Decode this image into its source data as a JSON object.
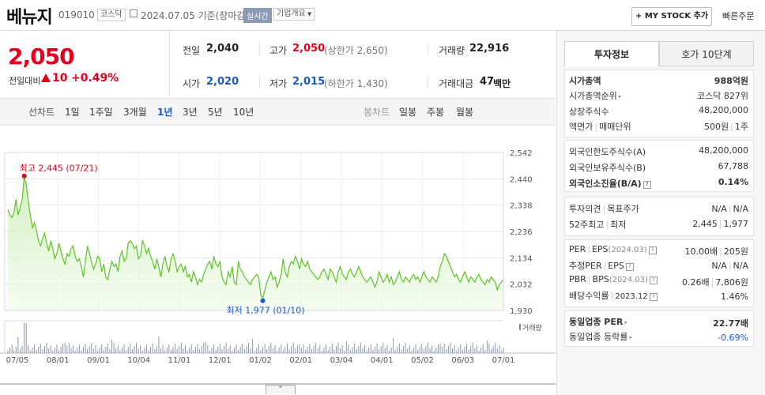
{
  "stock": {
    "name": "베뉴지",
    "code": "019010",
    "market": "코스닥",
    "date_text": "2024.07.05  기준(장마감)",
    "realtime_label": "실시간",
    "company_info_label": "기업개요",
    "mystock_label": "+ MY STOCK 추가",
    "quick_order_label": "빠른주문"
  },
  "price": {
    "current": "2,050",
    "change_label": "전일대비",
    "change_value": "10",
    "change_percent": "+0.49%"
  },
  "summary": {
    "prev_label": "전일",
    "prev_value": "2,040",
    "high_label": "고가",
    "high_value": "2,050",
    "upper_limit": "(상한가 2,650)",
    "volume_label": "거래량",
    "volume_value": "22,916",
    "open_label": "시가",
    "open_value": "2,020",
    "low_label": "저가",
    "low_value": "2,015",
    "lower_limit": "(하한가 1,430)",
    "amount_label": "거래대금",
    "amount_value": "47",
    "amount_unit": "백만"
  },
  "periods": {
    "line_label": "선차트",
    "items": [
      "1일",
      "1주일",
      "3개월",
      "1년",
      "3년",
      "5년",
      "10년"
    ],
    "active": "1년",
    "candle_label": "봉차트",
    "candle_items": [
      "일봉",
      "주봉",
      "월봉"
    ]
  },
  "chart_data": {
    "type": "area",
    "y_ticks": [
      2542,
      2440,
      2338,
      2236,
      2134,
      2032,
      1930
    ],
    "x_ticks": [
      "07/05",
      "08/01",
      "09/01",
      "10/04",
      "11/01",
      "12/01",
      "01/02",
      "02/01",
      "03/04",
      "04/01",
      "05/02",
      "06/03",
      "07/01"
    ],
    "ylim": [
      1930,
      2542
    ],
    "high_label": "최고 2,445 (07/21)",
    "low_label": "최저 1,977 (01/10)",
    "volume_label": "거래량",
    "prices": [
      2320,
      2300,
      2290,
      2310,
      2360,
      2300,
      2330,
      2360,
      2445,
      2420,
      2350,
      2300,
      2250,
      2270,
      2240,
      2200,
      2180,
      2210,
      2230,
      2190,
      2160,
      2200,
      2170,
      2130,
      2150,
      2190,
      2160,
      2130,
      2110,
      2150,
      2140,
      2170,
      2180,
      2140,
      2120,
      2130,
      2100,
      2060,
      2120,
      2180,
      2150,
      2120,
      2090,
      2110,
      2140,
      2130,
      2080,
      2110,
      2060,
      2050,
      2090,
      2120,
      2100,
      2110,
      2080,
      2140,
      2160,
      2120,
      2130,
      2190,
      2200,
      2190,
      2170,
      2180,
      2130,
      2140,
      2200,
      2180,
      2150,
      2170,
      2140,
      2120,
      2090,
      2130,
      2100,
      2060,
      2110,
      2140,
      2100,
      2080,
      2130,
      2150,
      2120,
      2080,
      2100,
      2110,
      2080,
      2100,
      2060,
      2070,
      2040,
      2080,
      2060,
      2030,
      2050,
      2040,
      2070,
      2090,
      2110,
      2120,
      2090,
      2140,
      2110,
      2100,
      2120,
      2060,
      2040,
      2030,
      2080,
      2060,
      2100,
      2040,
      2030,
      2120,
      2090,
      2080,
      2060,
      2050,
      2040,
      2030,
      2050,
      2060,
      2070,
      2060,
      1990,
      1977,
      2010,
      2040,
      2060,
      2080,
      2050,
      2060,
      2020,
      2040,
      2070,
      2130,
      2080,
      2060,
      2100,
      2120,
      2110,
      2140,
      2120,
      2090,
      2130,
      2110,
      2100,
      2120,
      2090,
      2080,
      2070,
      2060,
      2050,
      2060,
      2080,
      2090,
      2070,
      2050,
      2090,
      2080,
      2060,
      2040,
      2080,
      2100,
      2070,
      2060,
      2050,
      2080,
      2090,
      2070,
      2060,
      2080,
      2100,
      2080,
      2060,
      2050,
      2040,
      2050,
      2060,
      2040,
      2020,
      2040,
      2080,
      2060,
      2040,
      2050,
      2070,
      2040,
      2060,
      2030,
      2040,
      2060,
      2080,
      2050,
      2040,
      2060,
      2050,
      2040,
      2060,
      2070,
      2050,
      2060,
      2040,
      2060,
      2080,
      2060,
      2050,
      2040,
      2060,
      2050,
      2040,
      2060,
      2100,
      2120,
      2150,
      2140,
      2120,
      2100,
      2080,
      2060,
      2070,
      2050,
      2040,
      2060,
      2080,
      2060,
      2040,
      2060,
      2050,
      2040,
      2060,
      2070,
      2050,
      2040,
      2030,
      2050,
      2040,
      2060,
      2050,
      2040,
      2010,
      2030,
      2040,
      2050
    ]
  },
  "right_panel": {
    "tab_invest": "투자정보",
    "tab_hoga": "호가 10단계",
    "mcap_label": "시가총액",
    "mcap_value": "988억원",
    "mcap_rank_label": "시가총액순위",
    "mcap_rank_value": "코스닥 827위",
    "shares_label": "상장주식수",
    "shares_value": "48,200,000",
    "par_label": "액면가",
    "unit_label": "매매단위",
    "par_value": "500원",
    "unit_value": "1주",
    "foreign_limit_label": "외국인한도주식수(A)",
    "foreign_limit_value": "48,200,000",
    "foreign_hold_label": "외국인보유주식수(B)",
    "foreign_hold_value": "67,788",
    "foreign_ratio_label": "외국인소진율(B/A)",
    "foreign_ratio_value": "0.14%",
    "opinion_label": "투자의견",
    "target_label": "목표주가",
    "opinion_value": "N/A",
    "target_value": "N/A",
    "w52_high_label": "52주최고",
    "w52_low_label": "최저",
    "w52_high_value": "2,445",
    "w52_low_value": "1,977",
    "per_label": "PER",
    "eps_label": "EPS",
    "eps_date": "(2024.03)",
    "per_value": "10.00배",
    "eps_value": "205원",
    "est_per_label": "추정PER",
    "est_eps_label": "EPS",
    "est_per_value": "N/A",
    "est_eps_value": "N/A",
    "pbr_label": "PBR",
    "bps_label": "BPS",
    "bps_date": "(2024.03)",
    "pbr_value": "0.26배",
    "bps_value": "7,806원",
    "div_label": "배당수익률",
    "div_date": "2023.12",
    "div_value": "1.46%",
    "ind_per_label": "동일업종 PER",
    "ind_per_value": "22.77배",
    "ind_rate_label": "동일업종 등락률",
    "ind_rate_value": "-0.69%"
  }
}
